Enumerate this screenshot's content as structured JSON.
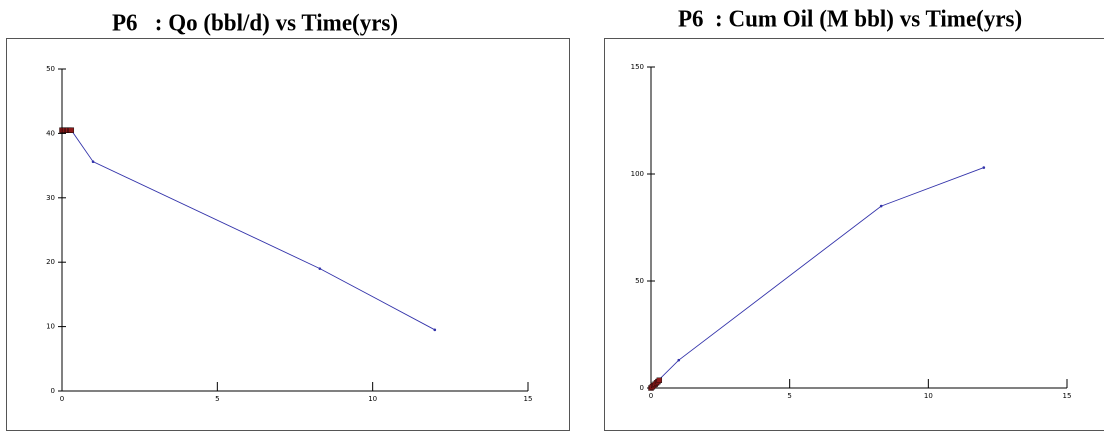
{
  "titles": {
    "left": "P6   : Qo (bbl/d) vs Time(yrs)",
    "right": "P6  : Cum Oil (M bbl) vs Time(yrs)"
  },
  "colors": {
    "series": "#3333aa",
    "early_marker": "#8b1a1a"
  },
  "chart_data": [
    {
      "type": "line",
      "title": "P6   : Qo (bbl/d) vs Time(yrs)",
      "xlabel": "",
      "ylabel": "",
      "xlim": [
        0,
        15
      ],
      "ylim": [
        0,
        50
      ],
      "xticks": [
        0,
        5,
        10,
        15
      ],
      "yticks": [
        0,
        10,
        20,
        30,
        40,
        50
      ],
      "x_tick_labels": [
        "0",
        "5",
        "10",
        "15"
      ],
      "y_tick_labels": [
        "0",
        "10",
        "20",
        "30",
        "40",
        "50"
      ],
      "grid": false,
      "series": [
        {
          "x": [
            0,
            0.3,
            1,
            8.3,
            12
          ],
          "y": [
            40.5,
            40.5,
            35.6,
            19,
            9.5
          ]
        }
      ],
      "early_markers": {
        "x": [
          0,
          0.05,
          0.1,
          0.15,
          0.2,
          0.25,
          0.3
        ],
        "y": [
          40.5,
          40.5,
          40.5,
          40.5,
          40.5,
          40.5,
          40.5
        ]
      }
    },
    {
      "type": "line",
      "title": "P6  : Cum Oil (M bbl) vs Time(yrs)",
      "xlabel": "",
      "ylabel": "",
      "xlim": [
        0,
        15
      ],
      "ylim": [
        0,
        150
      ],
      "xticks": [
        0,
        5,
        10,
        15
      ],
      "yticks": [
        0,
        50,
        100,
        150
      ],
      "x_tick_labels": [
        "0",
        "5",
        "10",
        "15"
      ],
      "y_tick_labels": [
        "0",
        "50",
        "100",
        "150"
      ],
      "grid": false,
      "series": [
        {
          "x": [
            0,
            0.3,
            1,
            8.3,
            12
          ],
          "y": [
            0,
            4,
            13,
            85,
            103
          ]
        }
      ],
      "early_markers": {
        "x": [
          0,
          0.05,
          0.1,
          0.15,
          0.2,
          0.25,
          0.3
        ],
        "y": [
          0,
          0.6,
          1.2,
          1.8,
          2.4,
          3,
          3.6
        ]
      }
    }
  ]
}
